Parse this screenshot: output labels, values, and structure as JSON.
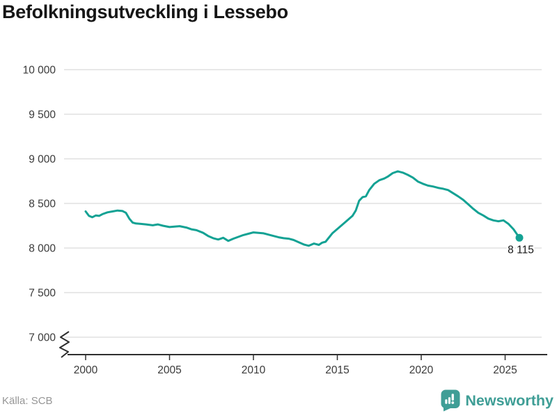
{
  "title": "Befolkningsutveckling i Lessebo",
  "source": "Källa: SCB",
  "logo": {
    "name": "Newsworthy",
    "color": "#3f9e96"
  },
  "chart_data": {
    "type": "line",
    "title": "Befolkningsutveckling i Lessebo",
    "xlabel": "",
    "ylabel": "",
    "grid": true,
    "legend": false,
    "axis_break_at_bottom": true,
    "ylim": [
      7000,
      10000
    ],
    "xlim": [
      2000,
      2027.5
    ],
    "y_ticks": [
      7000,
      7500,
      8000,
      8500,
      9000,
      9500,
      10000
    ],
    "y_tick_labels": [
      "7 000",
      "7 500",
      "8 000",
      "8 500",
      "9 000",
      "9 500",
      "10 000"
    ],
    "x_ticks": [
      2000,
      2005,
      2010,
      2015,
      2020,
      2025
    ],
    "line_color": "#14a294",
    "grid_color": "#e0e0e0",
    "axis_color": "#2f2f2f",
    "end_value": 8115,
    "end_label": "8 115",
    "series": [
      {
        "name": "Lessebo",
        "x": [
          2000.0,
          2000.2,
          2000.4,
          2000.6,
          2000.8,
          2001.0,
          2001.3,
          2001.6,
          2001.9,
          2002.2,
          2002.4,
          2002.6,
          2002.8,
          2003.0,
          2003.3,
          2003.6,
          2004.0,
          2004.3,
          2004.6,
          2005.0,
          2005.3,
          2005.6,
          2006.0,
          2006.3,
          2006.6,
          2007.0,
          2007.3,
          2007.6,
          2007.9,
          2008.2,
          2008.5,
          2008.8,
          2009.1,
          2009.4,
          2009.7,
          2010.0,
          2010.3,
          2010.6,
          2010.9,
          2011.2,
          2011.5,
          2011.8,
          2012.1,
          2012.4,
          2012.7,
          2013.0,
          2013.3,
          2013.6,
          2013.9,
          2014.1,
          2014.3,
          2014.7,
          2015.1,
          2015.5,
          2015.9,
          2016.1,
          2016.3,
          2016.5,
          2016.7,
          2016.9,
          2017.2,
          2017.5,
          2017.8,
          2018.0,
          2018.3,
          2018.6,
          2018.9,
          2019.2,
          2019.5,
          2019.8,
          2020.1,
          2020.4,
          2020.7,
          2021.0,
          2021.3,
          2021.6,
          2021.9,
          2022.2,
          2022.5,
          2022.8,
          2023.1,
          2023.4,
          2023.7,
          2024.0,
          2024.3,
          2024.6,
          2024.9,
          2025.2,
          2025.5,
          2025.85
        ],
        "values": [
          8410,
          8360,
          8345,
          8365,
          8360,
          8380,
          8400,
          8410,
          8420,
          8415,
          8395,
          8330,
          8285,
          8275,
          8270,
          8265,
          8255,
          8265,
          8250,
          8235,
          8240,
          8245,
          8230,
          8210,
          8200,
          8170,
          8135,
          8110,
          8095,
          8115,
          8080,
          8105,
          8125,
          8145,
          8160,
          8175,
          8170,
          8165,
          8150,
          8135,
          8120,
          8110,
          8105,
          8090,
          8065,
          8040,
          8025,
          8050,
          8035,
          8060,
          8070,
          8165,
          8230,
          8295,
          8360,
          8420,
          8530,
          8570,
          8580,
          8650,
          8720,
          8760,
          8780,
          8800,
          8840,
          8860,
          8845,
          8820,
          8790,
          8745,
          8720,
          8700,
          8690,
          8675,
          8665,
          8650,
          8615,
          8580,
          8540,
          8490,
          8440,
          8395,
          8365,
          8330,
          8310,
          8300,
          8310,
          8270,
          8210,
          8115
        ]
      }
    ]
  }
}
